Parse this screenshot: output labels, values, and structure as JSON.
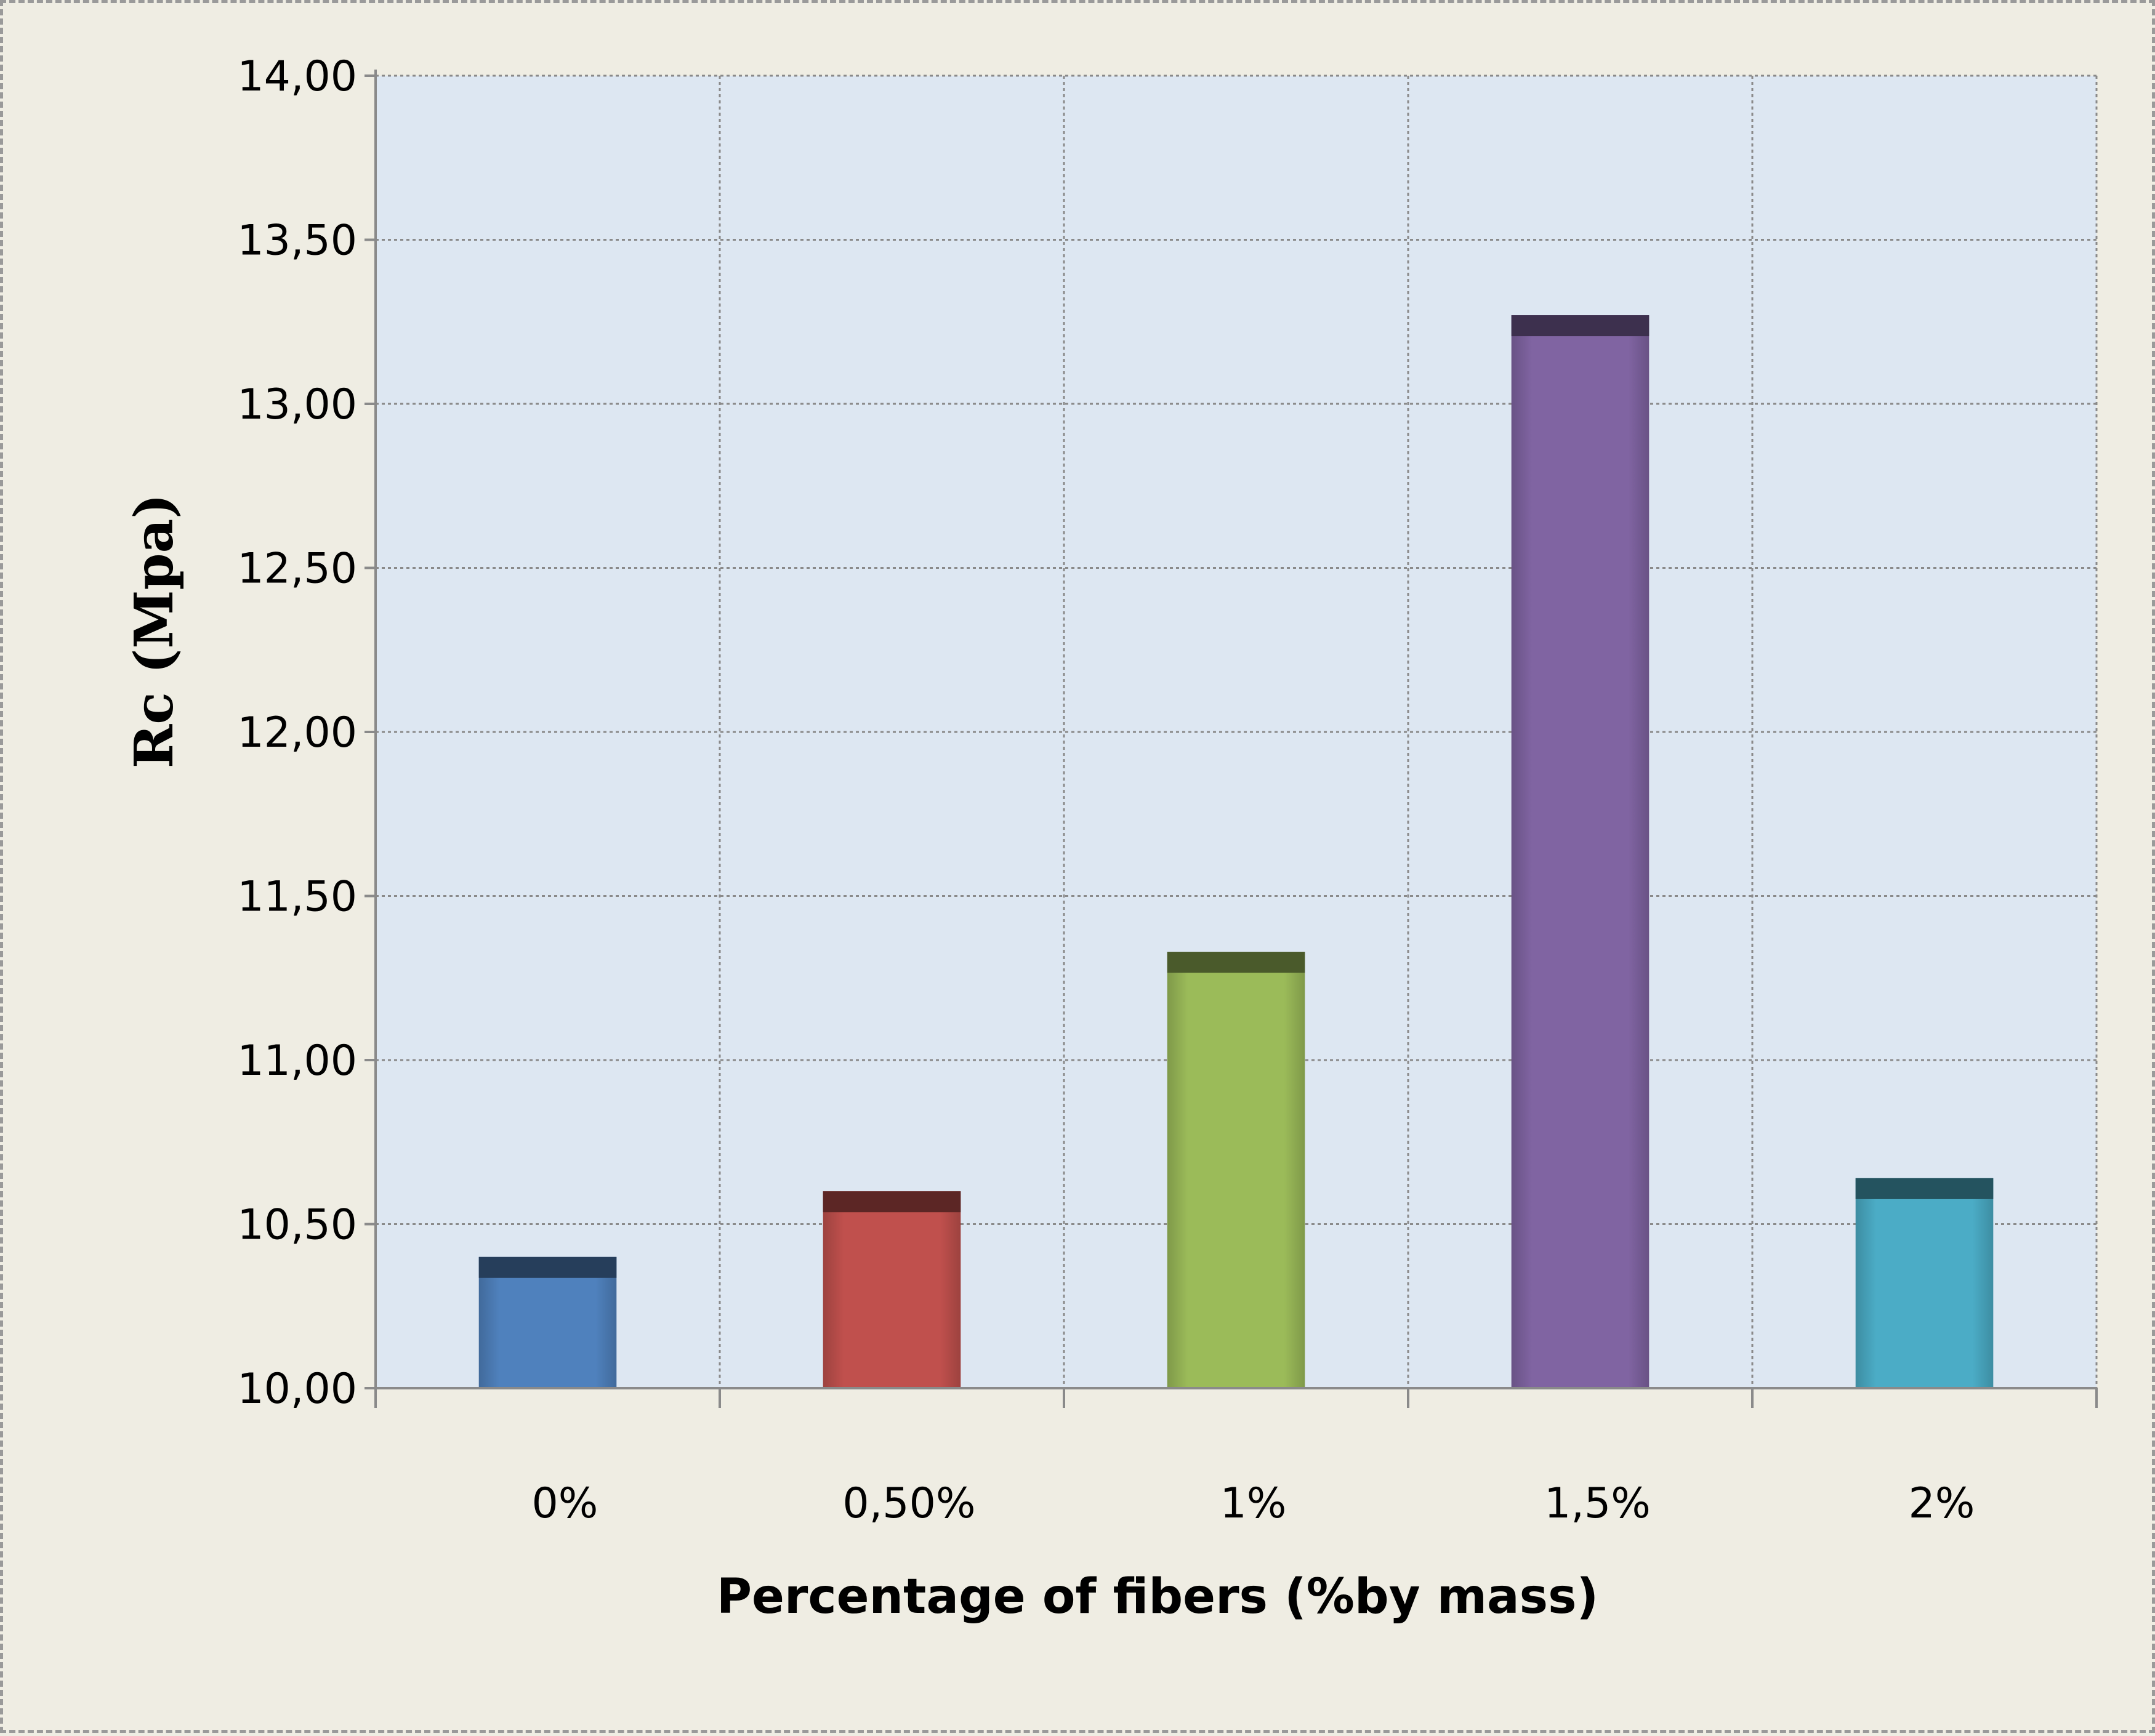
{
  "chart_data": {
    "type": "bar",
    "title": "",
    "xlabel": "Percentage of fibers (%by mass)",
    "ylabel": "Rc (Mpa)",
    "categories": [
      "0%",
      "0,50%",
      "1%",
      "1,5%",
      "2%"
    ],
    "values": [
      10.4,
      10.6,
      11.33,
      13.27,
      10.64
    ],
    "colors": [
      "#4f81bd",
      "#c0504d",
      "#9bbb59",
      "#8064a2",
      "#4bacc6"
    ],
    "ylim": [
      10.0,
      14.0
    ],
    "yticks": [
      10.0,
      10.5,
      11.0,
      11.5,
      12.0,
      12.5,
      13.0,
      13.5,
      14.0
    ],
    "ytick_labels": [
      "10,00",
      "10,50",
      "11,00",
      "11,50",
      "12,00",
      "12,50",
      "13,00",
      "13,50",
      "14,00"
    ],
    "grid": true,
    "legend": "none",
    "plot_background": "#dde7f2",
    "page_background": "#efede3"
  }
}
